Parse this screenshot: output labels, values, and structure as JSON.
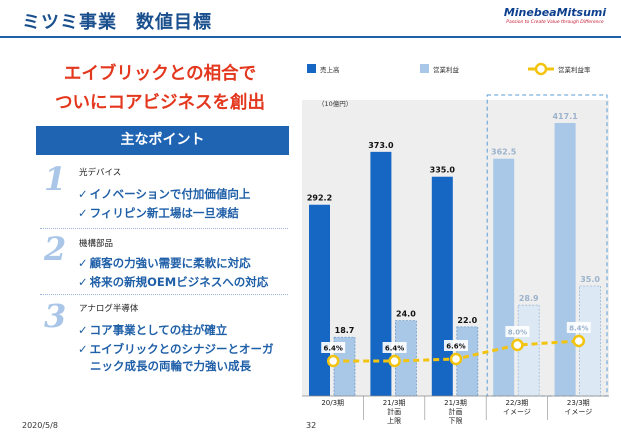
{
  "header": {
    "title": "ミツミ事業　数値目標",
    "logo_name": "MinebeaMitsumi",
    "logo_tagline": "Passion to Create Value through Difference"
  },
  "headline": {
    "line1": "エイブリックとの相合で",
    "line2": "ついにコアビジネスを創出"
  },
  "points": {
    "title": "主なポイント",
    "sections": [
      {
        "num": "1",
        "title": "光デバイス",
        "items": [
          "イノベーションで付加価値向上",
          "フィリピン新工場は一旦凍結"
        ]
      },
      {
        "num": "2",
        "title": "機構部品",
        "items": [
          "顧客の力強い需要に柔軟に対応",
          "将来の新規OEMビジネスへの対応"
        ]
      },
      {
        "num": "3",
        "title": "アナログ半導体",
        "items": [
          "コア事業としての柱が確立",
          "エイブリックとのシナジーとオーガ",
          "ニック成長の両輪で力強い成長"
        ]
      }
    ]
  },
  "chart_data": {
    "type": "bar",
    "unit_label": "（10億円）",
    "categories": [
      [
        "20/3期"
      ],
      [
        "21/3期",
        "計画",
        "上限"
      ],
      [
        "21/3期",
        "計画",
        "下限"
      ],
      [
        "22/3期",
        "イメージ"
      ],
      [
        "23/3期",
        "イメージ"
      ]
    ],
    "series": [
      {
        "name": "売上高",
        "type": "bar",
        "values": [
          292.2,
          373.0,
          335.0,
          362.5,
          417.1
        ]
      },
      {
        "name": "営業利益",
        "type": "bar",
        "values": [
          18.7,
          24.0,
          22.0,
          28.9,
          35.0
        ]
      },
      {
        "name": "営業利益率",
        "type": "line",
        "values": [
          6.4,
          6.4,
          6.6,
          8.0,
          8.4
        ],
        "value_labels": [
          "6.4%",
          "6.4%",
          "6.6%",
          "8.0%",
          "8.4%"
        ]
      }
    ],
    "projected_categories": [
      3,
      4
    ],
    "colors": {
      "sales": "#1666c4",
      "sales_projected": "#a9c8e8",
      "profit": "#a9c8e8",
      "profit_projected": "#dce8f4",
      "margin": "#f2c40f",
      "projection_box": "#5b9bd5",
      "background": "#eeeeee"
    },
    "ylim": [
      0,
      440
    ]
  },
  "footer": {
    "date": "2020/5/8",
    "page": "32"
  }
}
